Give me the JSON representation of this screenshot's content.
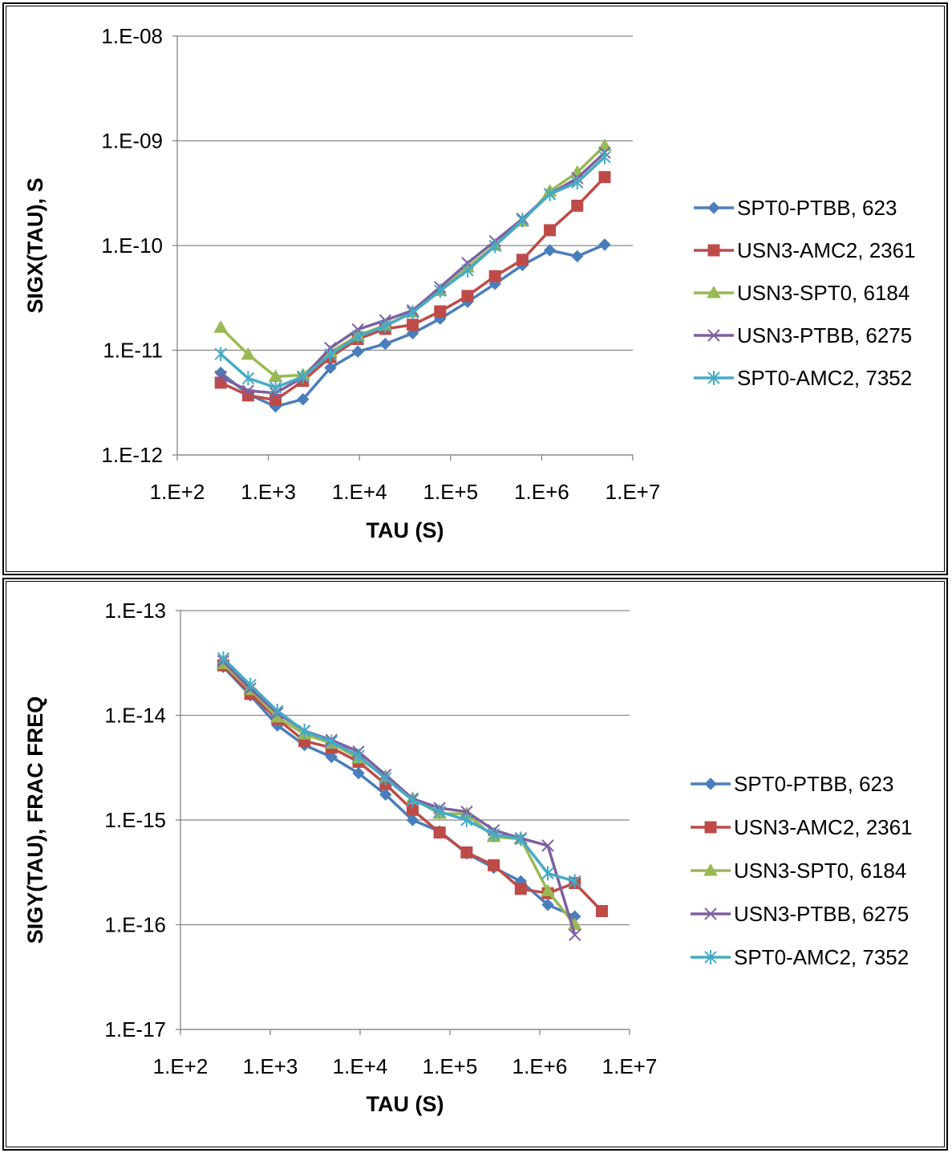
{
  "chart_data": [
    {
      "type": "line",
      "xlabel": "TAU (S)",
      "ylabel": "SIGX(TAU), S",
      "xscale": "log",
      "yscale": "log",
      "xlim": [
        100,
        10000000
      ],
      "ylim": [
        1e-12,
        1e-08
      ],
      "x_tick_labels": [
        "1.E+2",
        "1.E+3",
        "1.E+4",
        "1.E+5",
        "1.E+6",
        "1.E+7"
      ],
      "y_tick_labels": [
        "1.E-08",
        "1.E-09",
        "1.E-10",
        "1.E-11",
        "1.E-12"
      ],
      "grid": "horizontal",
      "legend_position": "right",
      "x": [
        300,
        600,
        1200,
        2400,
        4800,
        9600,
        19200,
        38400,
        76800,
        153600,
        307200,
        614400,
        1228800,
        2457600,
        4915200
      ],
      "series": [
        {
          "name": "SPT0-PTBB, 623",
          "color": "#4a7ebb",
          "marker": "diamond",
          "values": [
            6.1e-12,
            3.8e-12,
            2.9e-12,
            3.4e-12,
            6.8e-12,
            9.7e-12,
            1.15e-11,
            1.45e-11,
            2e-11,
            2.9e-11,
            4.3e-11,
            6.5e-11,
            9e-11,
            7.9e-11,
            1.02e-10
          ]
        },
        {
          "name": "USN3-AMC2, 2361",
          "color": "#be4b48",
          "marker": "square",
          "values": [
            4.9e-12,
            3.7e-12,
            3.35e-12,
            5.1e-12,
            8.6e-12,
            1.28e-11,
            1.6e-11,
            1.75e-11,
            2.35e-11,
            3.3e-11,
            5.1e-11,
            7.3e-11,
            1.4e-10,
            2.4e-10,
            4.5e-10
          ]
        },
        {
          "name": "USN3-SPT0, 6184",
          "color": "#98b954",
          "marker": "triangle",
          "values": [
            1.65e-11,
            9.1e-12,
            5.6e-12,
            5.8e-12,
            9.6e-12,
            1.38e-11,
            1.73e-11,
            2.3e-11,
            3.7e-11,
            6.2e-11,
            1e-10,
            1.7e-10,
            3.3e-10,
            5e-10,
            9e-10
          ]
        },
        {
          "name": "USN3-PTBB, 6275",
          "color": "#7d60a0",
          "marker": "x",
          "values": [
            5.6e-12,
            4.1e-12,
            3.9e-12,
            5.5e-12,
            1.05e-11,
            1.58e-11,
            1.93e-11,
            2.4e-11,
            4e-11,
            6.8e-11,
            1.1e-10,
            1.8e-10,
            3.1e-10,
            4.4e-10,
            7.7e-10
          ]
        },
        {
          "name": "SPT0-AMC2, 7352",
          "color": "#46aac5",
          "marker": "asterisk",
          "values": [
            9.2e-12,
            5.4e-12,
            4.4e-12,
            5.6e-12,
            9.1e-12,
            1.35e-11,
            1.7e-11,
            2.3e-11,
            3.7e-11,
            5.8e-11,
            9.9e-11,
            1.75e-10,
            3.1e-10,
            4e-10,
            7e-10
          ]
        }
      ]
    },
    {
      "type": "line",
      "xlabel": "TAU (S)",
      "ylabel": "SIGY(TAU), FRAC FREQ",
      "xscale": "log",
      "yscale": "log",
      "xlim": [
        100,
        10000000
      ],
      "ylim": [
        1e-17,
        1e-13
      ],
      "x_tick_labels": [
        "1.E+2",
        "1.E+3",
        "1.E+4",
        "1.E+5",
        "1.E+6",
        "1.E+7"
      ],
      "y_tick_labels": [
        "1.E-13",
        "1.E-14",
        "1.E-15",
        "1.E-16",
        "1.E-17"
      ],
      "grid": "horizontal",
      "legend_position": "right",
      "x": [
        300,
        600,
        1200,
        2400,
        4800,
        9600,
        19200,
        38400,
        76800,
        153600,
        307200,
        614400,
        1228800,
        2457600,
        4915200
      ],
      "series": [
        {
          "name": "SPT0-PTBB, 623",
          "color": "#4a7ebb",
          "marker": "diamond",
          "values": [
            2.9e-14,
            1.55e-14,
            8e-15,
            5.2e-15,
            4e-15,
            2.8e-15,
            1.75e-15,
            1e-15,
            7.8e-16,
            4.8e-16,
            3.5e-16,
            2.6e-16,
            1.55e-16,
            1.2e-16,
            null
          ]
        },
        {
          "name": "USN3-AMC2, 2361",
          "color": "#be4b48",
          "marker": "square",
          "values": [
            3e-14,
            1.6e-14,
            9.2e-15,
            5.7e-15,
            4.9e-15,
            3.6e-15,
            2.2e-15,
            1.25e-15,
            7.6e-16,
            4.9e-16,
            3.7e-16,
            2.2e-16,
            2e-16,
            2.5e-16,
            1.35e-16
          ]
        },
        {
          "name": "USN3-SPT0, 6184",
          "color": "#98b954",
          "marker": "triangle",
          "values": [
            3.1e-14,
            1.75e-14,
            9.6e-15,
            6.6e-15,
            5.4e-15,
            3.9e-15,
            2.6e-15,
            1.6e-15,
            1.15e-15,
            1.15e-15,
            6.9e-16,
            6.6e-16,
            2.1e-16,
            1e-16,
            null
          ]
        },
        {
          "name": "USN3-PTBB, 6275",
          "color": "#7d60a0",
          "marker": "x",
          "values": [
            3.3e-14,
            1.8e-14,
            1.05e-14,
            7.1e-15,
            5.8e-15,
            4.5e-15,
            2.7e-15,
            1.6e-15,
            1.3e-15,
            1.2e-15,
            8e-16,
            6.7e-16,
            5.7e-16,
            8e-17,
            null
          ]
        },
        {
          "name": "SPT0-AMC2, 7352",
          "color": "#46aac5",
          "marker": "asterisk",
          "values": [
            3.5e-14,
            1.95e-14,
            1.1e-14,
            7.1e-15,
            5.6e-15,
            4.1e-15,
            2.5e-15,
            1.55e-15,
            1.2e-15,
            1e-15,
            7.3e-16,
            6.6e-16,
            3.1e-16,
            2.6e-16,
            null
          ]
        }
      ]
    }
  ]
}
